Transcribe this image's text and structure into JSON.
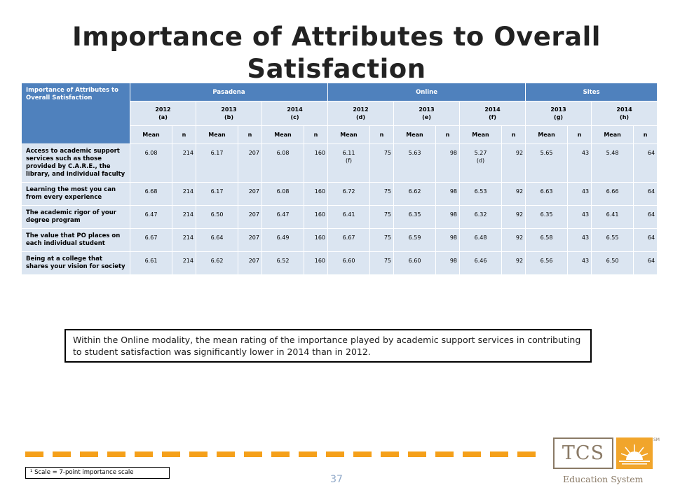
{
  "title": "Importance of Attributes to Overall Satisfaction",
  "table": {
    "corner_label": "Importance of Attributes to Overall Satisfaction",
    "groups": [
      "Pasadena",
      "Online",
      "Sites"
    ],
    "subgroups": [
      {
        "year": "2012",
        "tag": "(a)"
      },
      {
        "year": "2013",
        "tag": "(b)"
      },
      {
        "year": "2014",
        "tag": "(c)"
      },
      {
        "year": "2012",
        "tag": "(d)"
      },
      {
        "year": "2013",
        "tag": "(e)"
      },
      {
        "year": "2014",
        "tag": "(f)"
      },
      {
        "year": "2013",
        "tag": "(g)"
      },
      {
        "year": "2014",
        "tag": "(h)"
      }
    ],
    "mean_label": "Mean",
    "n_label": "n",
    "rows": [
      {
        "label": "Access to academic support services such as those provided by C.A.R.E., the library, and individual faculty",
        "cells": [
          [
            "6.08",
            "214"
          ],
          [
            "6.17",
            "207"
          ],
          [
            "6.08",
            "160"
          ],
          [
            "6.11",
            "75",
            "(f)"
          ],
          [
            "5.63",
            "98"
          ],
          [
            "5.27",
            "92",
            "(d)"
          ],
          [
            "5.65",
            "43"
          ],
          [
            "5.48",
            "64"
          ]
        ]
      },
      {
        "label": "Learning the most you can from every experience",
        "cells": [
          [
            "6.68",
            "214"
          ],
          [
            "6.17",
            "207"
          ],
          [
            "6.08",
            "160"
          ],
          [
            "6.72",
            "75"
          ],
          [
            "6.62",
            "98"
          ],
          [
            "6.53",
            "92"
          ],
          [
            "6.63",
            "43"
          ],
          [
            "6.66",
            "64"
          ]
        ]
      },
      {
        "label": "The academic rigor of your degree program",
        "cells": [
          [
            "6.47",
            "214"
          ],
          [
            "6.50",
            "207"
          ],
          [
            "6.47",
            "160"
          ],
          [
            "6.41",
            "75"
          ],
          [
            "6.35",
            "98"
          ],
          [
            "6.32",
            "92"
          ],
          [
            "6.35",
            "43"
          ],
          [
            "6.41",
            "64"
          ]
        ]
      },
      {
        "label": "The value that PO places on each individual student",
        "cells": [
          [
            "6.67",
            "214"
          ],
          [
            "6.64",
            "207"
          ],
          [
            "6.49",
            "160"
          ],
          [
            "6.67",
            "75"
          ],
          [
            "6.59",
            "98"
          ],
          [
            "6.48",
            "92"
          ],
          [
            "6.58",
            "43"
          ],
          [
            "6.55",
            "64"
          ]
        ]
      },
      {
        "label": "Being at a college that shares your vision for society",
        "cells": [
          [
            "6.61",
            "214"
          ],
          [
            "6.62",
            "207"
          ],
          [
            "6.52",
            "160"
          ],
          [
            "6.60",
            "75"
          ],
          [
            "6.60",
            "98"
          ],
          [
            "6.46",
            "92"
          ],
          [
            "6.56",
            "43"
          ],
          [
            "6.50",
            "64"
          ]
        ]
      }
    ]
  },
  "callout": "Within the Online modality, the mean rating of the importance played by academic support services in contributing to student satisfaction was significantly lower in 2014 than in 2012.",
  "footnote": "¹ Scale = 7-point importance scale",
  "page_number": "37",
  "logo": {
    "mark": "TCS",
    "tagline": "Education System",
    "sm": "SM"
  },
  "colors": {
    "header": "#4f81bd",
    "cell": "#dbe5f1",
    "dash": "#f5a01a",
    "logo": "#8a7a66"
  }
}
